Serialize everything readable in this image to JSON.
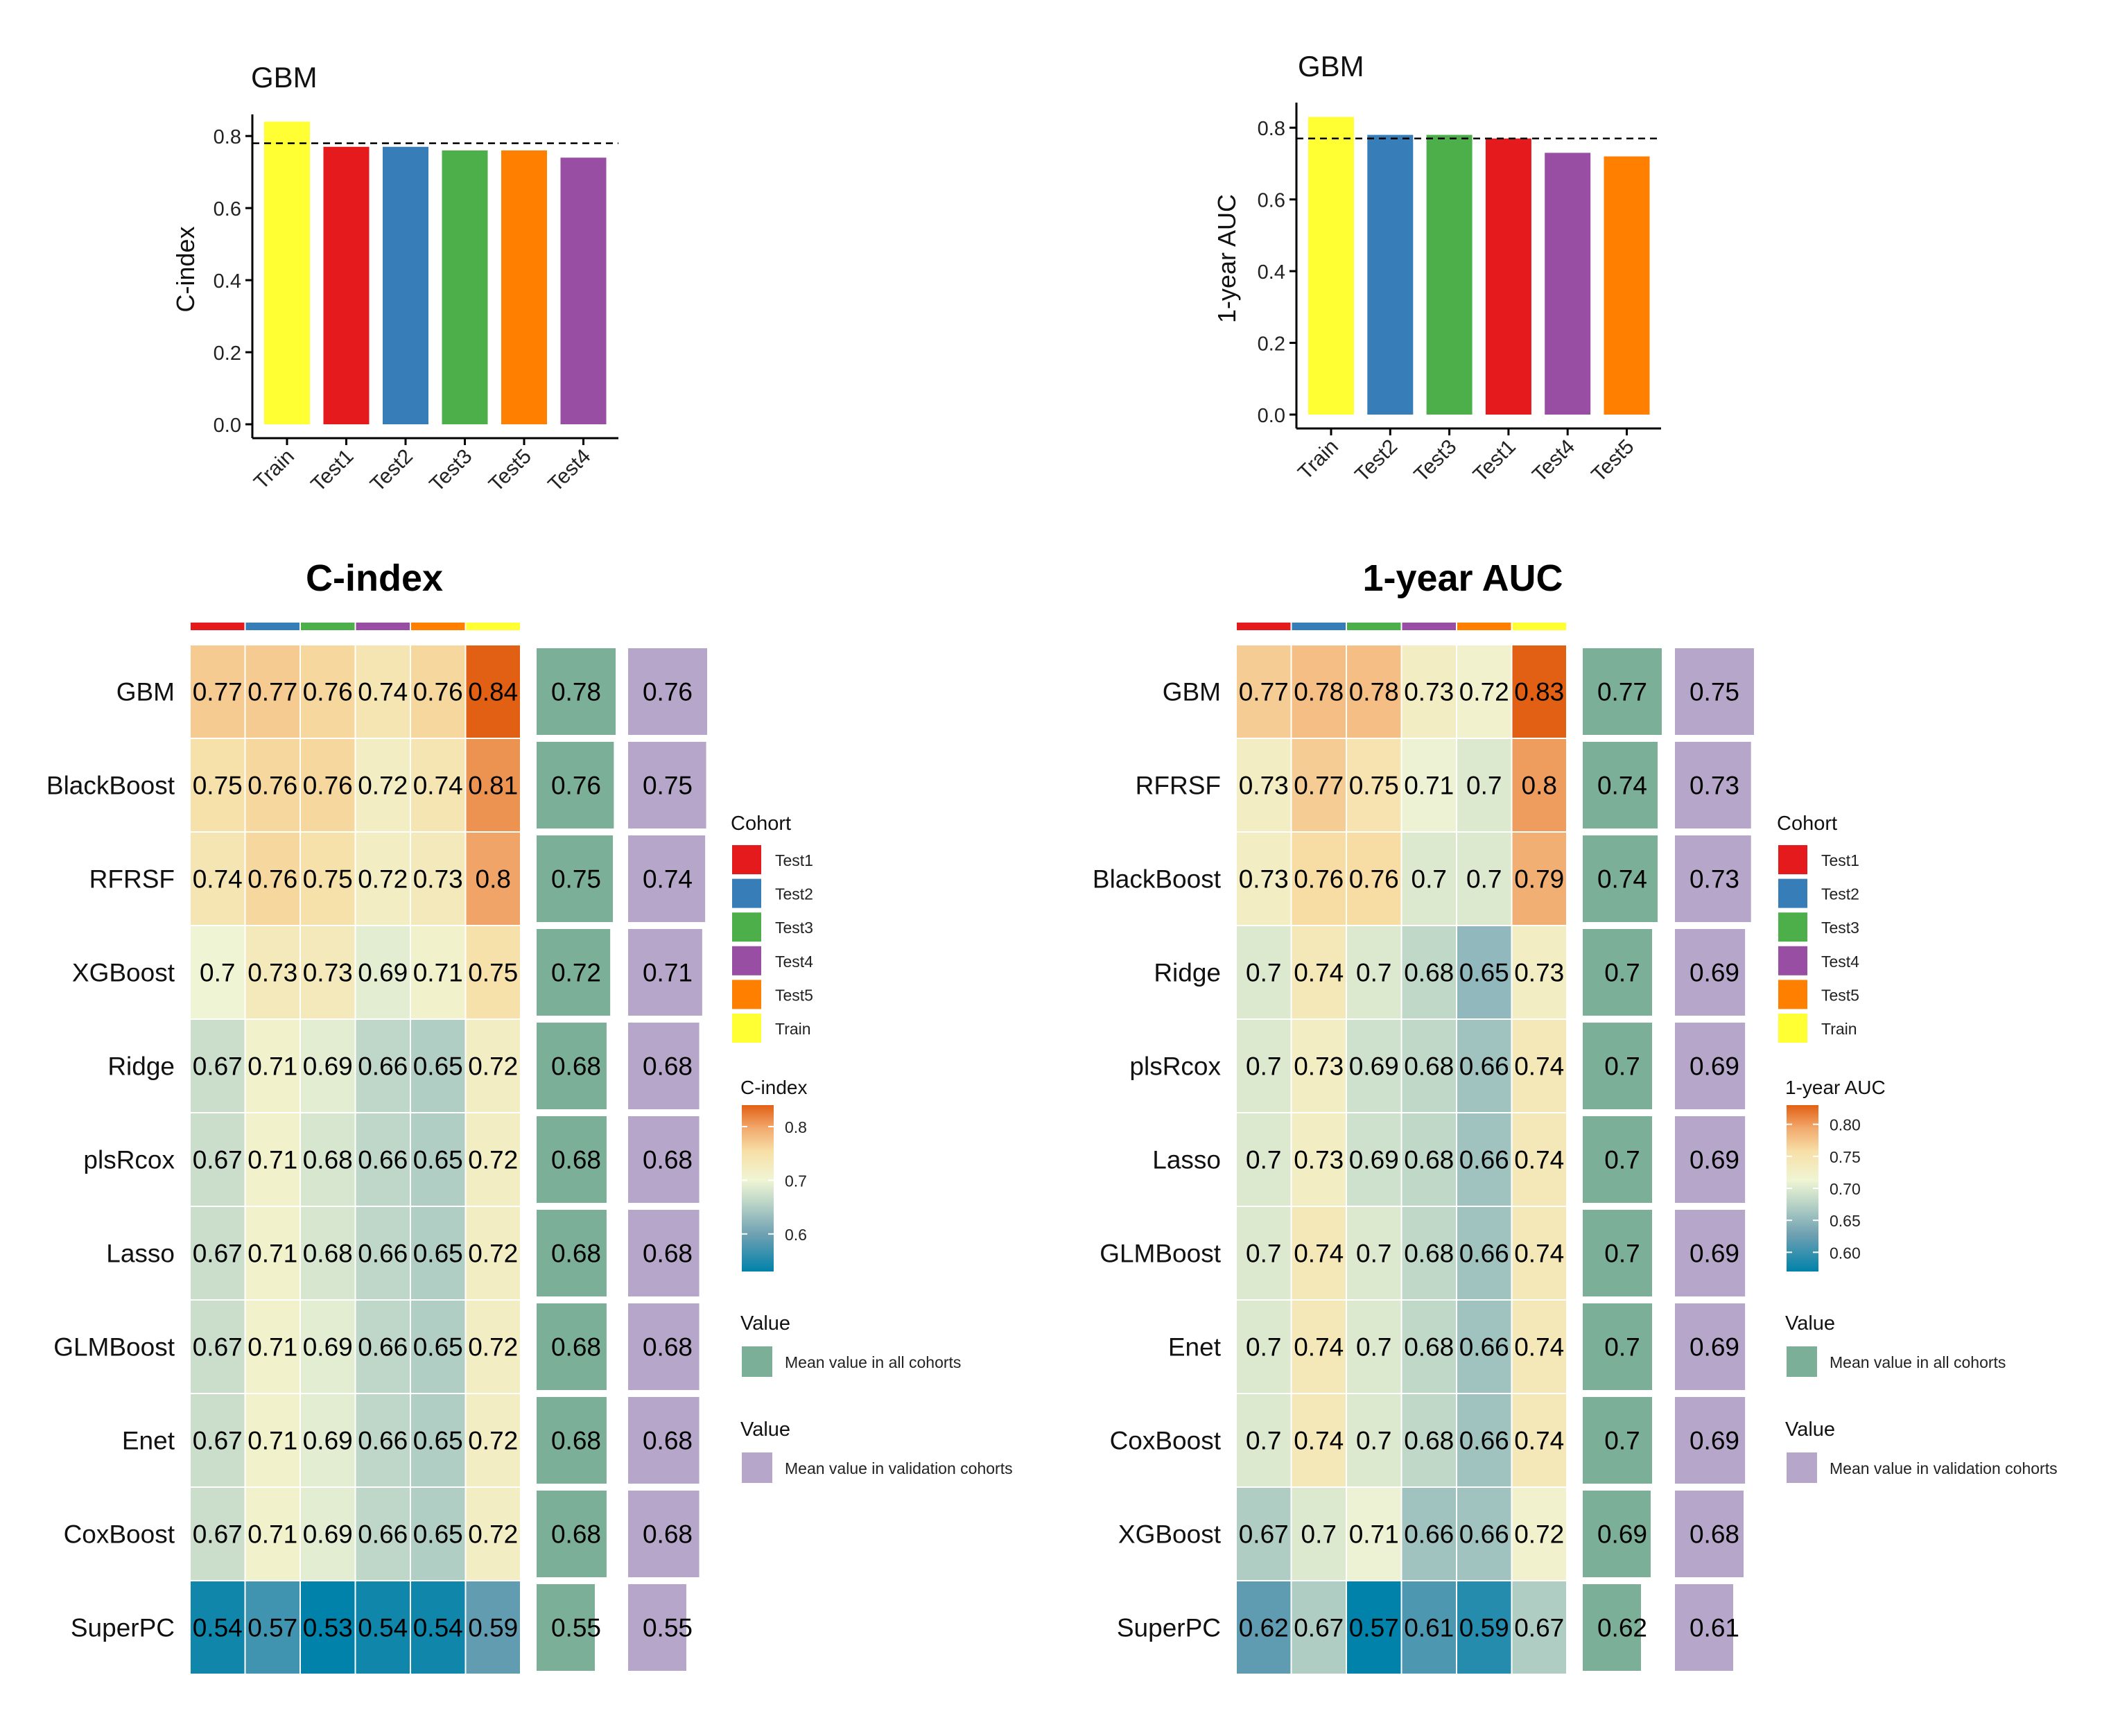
{
  "colors": {
    "Test1": "#E41A1C",
    "Test2": "#377EB8",
    "Test3": "#4DAF4A",
    "Test4": "#984EA3",
    "Test5": "#FF7F00",
    "Train": "#FFFF33",
    "mean_all": "#7BAF98",
    "mean_val": "#B6A6CA"
  },
  "cohort_order": [
    "Test1",
    "Test2",
    "Test3",
    "Test4",
    "Test5",
    "Train"
  ],
  "chart_data": [
    {
      "type": "bar",
      "title": "GBM",
      "xlabel": "",
      "ylabel": "C-index",
      "ylim": [
        0,
        0.86
      ],
      "yticks": [
        "0.0",
        "0.2",
        "0.4",
        "0.6",
        "0.8"
      ],
      "categories": [
        "Train",
        "Test1",
        "Test2",
        "Test3",
        "Test5",
        "Test4"
      ],
      "values": [
        0.84,
        0.77,
        0.77,
        0.76,
        0.76,
        0.74
      ],
      "reference_line": 0.78
    },
    {
      "type": "bar",
      "title": "GBM",
      "xlabel": "",
      "ylabel": "1-year AUC",
      "ylim": [
        0,
        0.87
      ],
      "yticks": [
        "0.0",
        "0.2",
        "0.4",
        "0.6",
        "0.8"
      ],
      "categories": [
        "Train",
        "Test2",
        "Test3",
        "Test1",
        "Test4",
        "Test5"
      ],
      "values": [
        0.83,
        0.78,
        0.78,
        0.77,
        0.73,
        0.72
      ],
      "reference_line": 0.77
    },
    {
      "type": "heatmap",
      "title": "C-index",
      "columns": [
        "Test1",
        "Test2",
        "Test3",
        "Test4",
        "Test5",
        "Train"
      ],
      "color_scale": {
        "title": "C-index",
        "min": 0.53,
        "max": 0.84,
        "ticks": [
          "0.6",
          "0.7",
          "0.8"
        ]
      },
      "rows": [
        {
          "name": "GBM",
          "values": [
            "0.77",
            "0.77",
            "0.76",
            "0.74",
            "0.76",
            "0.84"
          ],
          "mean_all": "0.78",
          "mean_val": "0.76"
        },
        {
          "name": "BlackBoost",
          "values": [
            "0.75",
            "0.76",
            "0.76",
            "0.72",
            "0.74",
            "0.81"
          ],
          "mean_all": "0.76",
          "mean_val": "0.75"
        },
        {
          "name": "RFRSF",
          "values": [
            "0.74",
            "0.76",
            "0.75",
            "0.72",
            "0.73",
            "0.8"
          ],
          "mean_all": "0.75",
          "mean_val": "0.74"
        },
        {
          "name": "XGBoost",
          "values": [
            "0.7",
            "0.73",
            "0.73",
            "0.69",
            "0.71",
            "0.75"
          ],
          "mean_all": "0.72",
          "mean_val": "0.71"
        },
        {
          "name": "Ridge",
          "values": [
            "0.67",
            "0.71",
            "0.69",
            "0.66",
            "0.65",
            "0.72"
          ],
          "mean_all": "0.68",
          "mean_val": "0.68"
        },
        {
          "name": "plsRcox",
          "values": [
            "0.67",
            "0.71",
            "0.68",
            "0.66",
            "0.65",
            "0.72"
          ],
          "mean_all": "0.68",
          "mean_val": "0.68"
        },
        {
          "name": "Lasso",
          "values": [
            "0.67",
            "0.71",
            "0.68",
            "0.66",
            "0.65",
            "0.72"
          ],
          "mean_all": "0.68",
          "mean_val": "0.68"
        },
        {
          "name": "GLMBoost",
          "values": [
            "0.67",
            "0.71",
            "0.69",
            "0.66",
            "0.65",
            "0.72"
          ],
          "mean_all": "0.68",
          "mean_val": "0.68"
        },
        {
          "name": "Enet",
          "values": [
            "0.67",
            "0.71",
            "0.69",
            "0.66",
            "0.65",
            "0.72"
          ],
          "mean_all": "0.68",
          "mean_val": "0.68"
        },
        {
          "name": "CoxBoost",
          "values": [
            "0.67",
            "0.71",
            "0.69",
            "0.66",
            "0.65",
            "0.72"
          ],
          "mean_all": "0.68",
          "mean_val": "0.68"
        },
        {
          "name": "SuperPC",
          "values": [
            "0.54",
            "0.57",
            "0.53",
            "0.54",
            "0.54",
            "0.59"
          ],
          "mean_all": "0.55",
          "mean_val": "0.55"
        }
      ]
    },
    {
      "type": "heatmap",
      "title": "1-year AUC",
      "columns": [
        "Test1",
        "Test2",
        "Test3",
        "Test4",
        "Test5",
        "Train"
      ],
      "color_scale": {
        "title": "1-year AUC",
        "min": 0.57,
        "max": 0.83,
        "ticks": [
          "0.60",
          "0.65",
          "0.70",
          "0.75",
          "0.80"
        ]
      },
      "rows": [
        {
          "name": "GBM",
          "values": [
            "0.77",
            "0.78",
            "0.78",
            "0.73",
            "0.72",
            "0.83"
          ],
          "mean_all": "0.77",
          "mean_val": "0.75"
        },
        {
          "name": "RFRSF",
          "values": [
            "0.73",
            "0.77",
            "0.75",
            "0.71",
            "0.7",
            "0.8"
          ],
          "mean_all": "0.74",
          "mean_val": "0.73"
        },
        {
          "name": "BlackBoost",
          "values": [
            "0.73",
            "0.76",
            "0.76",
            "0.7",
            "0.7",
            "0.79"
          ],
          "mean_all": "0.74",
          "mean_val": "0.73"
        },
        {
          "name": "Ridge",
          "values": [
            "0.7",
            "0.74",
            "0.7",
            "0.68",
            "0.65",
            "0.73"
          ],
          "mean_all": "0.7",
          "mean_val": "0.69"
        },
        {
          "name": "plsRcox",
          "values": [
            "0.7",
            "0.73",
            "0.69",
            "0.68",
            "0.66",
            "0.74"
          ],
          "mean_all": "0.7",
          "mean_val": "0.69"
        },
        {
          "name": "Lasso",
          "values": [
            "0.7",
            "0.73",
            "0.69",
            "0.68",
            "0.66",
            "0.74"
          ],
          "mean_all": "0.7",
          "mean_val": "0.69"
        },
        {
          "name": "GLMBoost",
          "values": [
            "0.7",
            "0.74",
            "0.7",
            "0.68",
            "0.66",
            "0.74"
          ],
          "mean_all": "0.7",
          "mean_val": "0.69"
        },
        {
          "name": "Enet",
          "values": [
            "0.7",
            "0.74",
            "0.7",
            "0.68",
            "0.66",
            "0.74"
          ],
          "mean_all": "0.7",
          "mean_val": "0.69"
        },
        {
          "name": "CoxBoost",
          "values": [
            "0.7",
            "0.74",
            "0.7",
            "0.68",
            "0.66",
            "0.74"
          ],
          "mean_all": "0.7",
          "mean_val": "0.69"
        },
        {
          "name": "XGBoost",
          "values": [
            "0.67",
            "0.7",
            "0.71",
            "0.66",
            "0.66",
            "0.72"
          ],
          "mean_all": "0.69",
          "mean_val": "0.68"
        },
        {
          "name": "SuperPC",
          "values": [
            "0.62",
            "0.67",
            "0.57",
            "0.61",
            "0.59",
            "0.67"
          ],
          "mean_all": "0.62",
          "mean_val": "0.61"
        }
      ]
    }
  ],
  "legends": {
    "cohort_title": "Cohort",
    "cohort_items": [
      "Test1",
      "Test2",
      "Test3",
      "Test4",
      "Test5",
      "Train"
    ],
    "value_title": "Value",
    "mean_all_label": "Mean value in all cohorts",
    "mean_val_label": "Mean value in validation cohorts"
  }
}
